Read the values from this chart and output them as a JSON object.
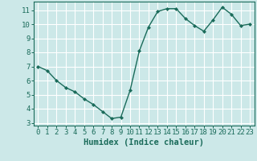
{
  "x": [
    0,
    1,
    2,
    3,
    4,
    5,
    6,
    7,
    8,
    9,
    10,
    11,
    12,
    13,
    14,
    15,
    16,
    17,
    18,
    19,
    20,
    21,
    22,
    23
  ],
  "y": [
    7.0,
    6.7,
    6.0,
    5.5,
    5.2,
    4.7,
    4.3,
    3.8,
    3.3,
    3.4,
    5.3,
    8.1,
    9.8,
    10.9,
    11.1,
    11.1,
    10.4,
    9.9,
    9.5,
    10.3,
    11.2,
    10.7,
    9.9,
    10.0
  ],
  "line_color": "#1a6b5a",
  "marker": "D",
  "marker_size": 2.0,
  "line_width": 1.0,
  "bg_color": "#cce8e8",
  "grid_color": "#ffffff",
  "xlabel": "Humidex (Indice chaleur)",
  "xlabel_fontsize": 7.5,
  "tick_color": "#1a6b5a",
  "tick_fontsize": 6.5,
  "xlim": [
    -0.5,
    23.5
  ],
  "ylim": [
    2.8,
    11.6
  ],
  "yticks": [
    3,
    4,
    5,
    6,
    7,
    8,
    9,
    10,
    11
  ],
  "xticks": [
    0,
    1,
    2,
    3,
    4,
    5,
    6,
    7,
    8,
    9,
    10,
    11,
    12,
    13,
    14,
    15,
    16,
    17,
    18,
    19,
    20,
    21,
    22,
    23
  ]
}
